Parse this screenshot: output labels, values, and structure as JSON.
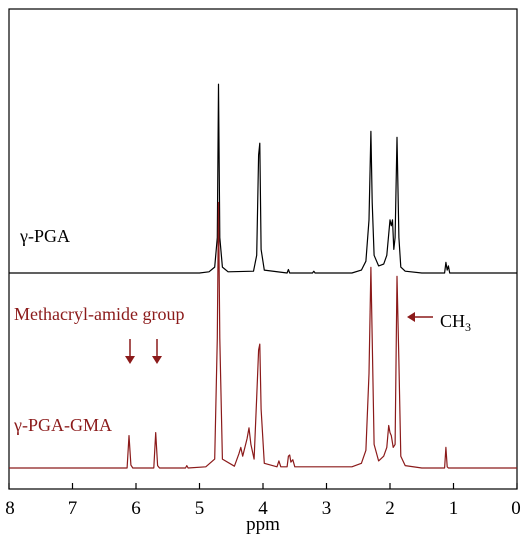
{
  "chart_data": {
    "type": "line",
    "title": "",
    "xlabel": "ppm",
    "ylabel": "",
    "xlim": [
      8,
      0
    ],
    "x_reversed": true,
    "x_ticks": [
      8,
      7,
      6,
      5,
      4,
      3,
      2,
      1,
      0
    ],
    "grid": false,
    "series": [
      {
        "name": "γ-PGA",
        "color": "#000000",
        "baseline": 1.0,
        "points": [
          [
            8.0,
            1.0
          ],
          [
            5.0,
            1.0
          ],
          [
            4.85,
            1.02
          ],
          [
            4.76,
            1.1
          ],
          [
            4.72,
            1.6
          ],
          [
            4.7,
            4.2
          ],
          [
            4.68,
            1.6
          ],
          [
            4.64,
            1.1
          ],
          [
            4.55,
            1.02
          ],
          [
            4.15,
            1.03
          ],
          [
            4.1,
            1.3
          ],
          [
            4.07,
            3.0
          ],
          [
            4.05,
            3.2
          ],
          [
            4.03,
            1.4
          ],
          [
            3.98,
            1.05
          ],
          [
            3.62,
            1.0
          ],
          [
            3.6,
            1.06
          ],
          [
            3.58,
            1.0
          ],
          [
            3.22,
            1.0
          ],
          [
            3.2,
            1.03
          ],
          [
            3.18,
            1.0
          ],
          [
            2.6,
            1.0
          ],
          [
            2.45,
            1.05
          ],
          [
            2.38,
            1.2
          ],
          [
            2.33,
            1.9
          ],
          [
            2.3,
            3.4
          ],
          [
            2.28,
            2.2
          ],
          [
            2.25,
            1.3
          ],
          [
            2.18,
            1.12
          ],
          [
            2.1,
            1.15
          ],
          [
            2.05,
            1.3
          ],
          [
            2.0,
            1.9
          ],
          [
            1.98,
            1.8
          ],
          [
            1.96,
            1.9
          ],
          [
            1.94,
            1.4
          ],
          [
            1.92,
            1.6
          ],
          [
            1.89,
            3.3
          ],
          [
            1.86,
            1.6
          ],
          [
            1.83,
            1.1
          ],
          [
            1.76,
            1.03
          ],
          [
            1.5,
            1.0
          ],
          [
            1.14,
            1.0
          ],
          [
            1.12,
            1.18
          ],
          [
            1.1,
            1.05
          ],
          [
            1.08,
            1.12
          ],
          [
            1.06,
            1.0
          ],
          [
            0.0,
            1.0
          ]
        ]
      },
      {
        "name": "γ-PGA-GMA",
        "color": "#8b1a1a",
        "baseline": 0.0,
        "points": [
          [
            8.0,
            0.0
          ],
          [
            6.14,
            0.0
          ],
          [
            6.11,
            0.55
          ],
          [
            6.08,
            0.05
          ],
          [
            6.05,
            0.0
          ],
          [
            5.72,
            0.0
          ],
          [
            5.69,
            0.6
          ],
          [
            5.66,
            0.04
          ],
          [
            5.63,
            0.0
          ],
          [
            5.22,
            0.0
          ],
          [
            5.2,
            0.04
          ],
          [
            5.18,
            0.0
          ],
          [
            4.9,
            0.02
          ],
          [
            4.76,
            0.15
          ],
          [
            4.72,
            2.2
          ],
          [
            4.7,
            4.5
          ],
          [
            4.68,
            2.2
          ],
          [
            4.64,
            0.15
          ],
          [
            4.45,
            0.03
          ],
          [
            4.38,
            0.24
          ],
          [
            4.35,
            0.35
          ],
          [
            4.32,
            0.2
          ],
          [
            4.25,
            0.5
          ],
          [
            4.22,
            0.68
          ],
          [
            4.19,
            0.4
          ],
          [
            4.14,
            0.15
          ],
          [
            4.1,
            1.2
          ],
          [
            4.07,
            2.0
          ],
          [
            4.05,
            2.1
          ],
          [
            4.03,
            1.0
          ],
          [
            3.98,
            0.08
          ],
          [
            3.78,
            0.02
          ],
          [
            3.75,
            0.12
          ],
          [
            3.72,
            0.02
          ],
          [
            3.62,
            0.02
          ],
          [
            3.6,
            0.2
          ],
          [
            3.58,
            0.22
          ],
          [
            3.56,
            0.1
          ],
          [
            3.53,
            0.14
          ],
          [
            3.5,
            0.02
          ],
          [
            2.6,
            0.02
          ],
          [
            2.45,
            0.08
          ],
          [
            2.38,
            0.3
          ],
          [
            2.33,
            1.6
          ],
          [
            2.3,
            3.4
          ],
          [
            2.28,
            2.2
          ],
          [
            2.25,
            0.4
          ],
          [
            2.18,
            0.12
          ],
          [
            2.1,
            0.2
          ],
          [
            2.05,
            0.35
          ],
          [
            2.02,
            0.72
          ],
          [
            2.0,
            0.6
          ],
          [
            1.98,
            0.55
          ],
          [
            1.95,
            0.35
          ],
          [
            1.92,
            0.4
          ],
          [
            1.89,
            3.25
          ],
          [
            1.86,
            1.8
          ],
          [
            1.83,
            0.2
          ],
          [
            1.76,
            0.04
          ],
          [
            1.5,
            0.0
          ],
          [
            1.14,
            0.0
          ],
          [
            1.12,
            0.35
          ],
          [
            1.1,
            0.02
          ],
          [
            1.08,
            0.0
          ],
          [
            0.0,
            0.0
          ]
        ]
      }
    ],
    "annotations": {
      "methacryl": "Methacryl-amide group",
      "ch3_main": "CH",
      "ch3_sub": "3"
    }
  }
}
